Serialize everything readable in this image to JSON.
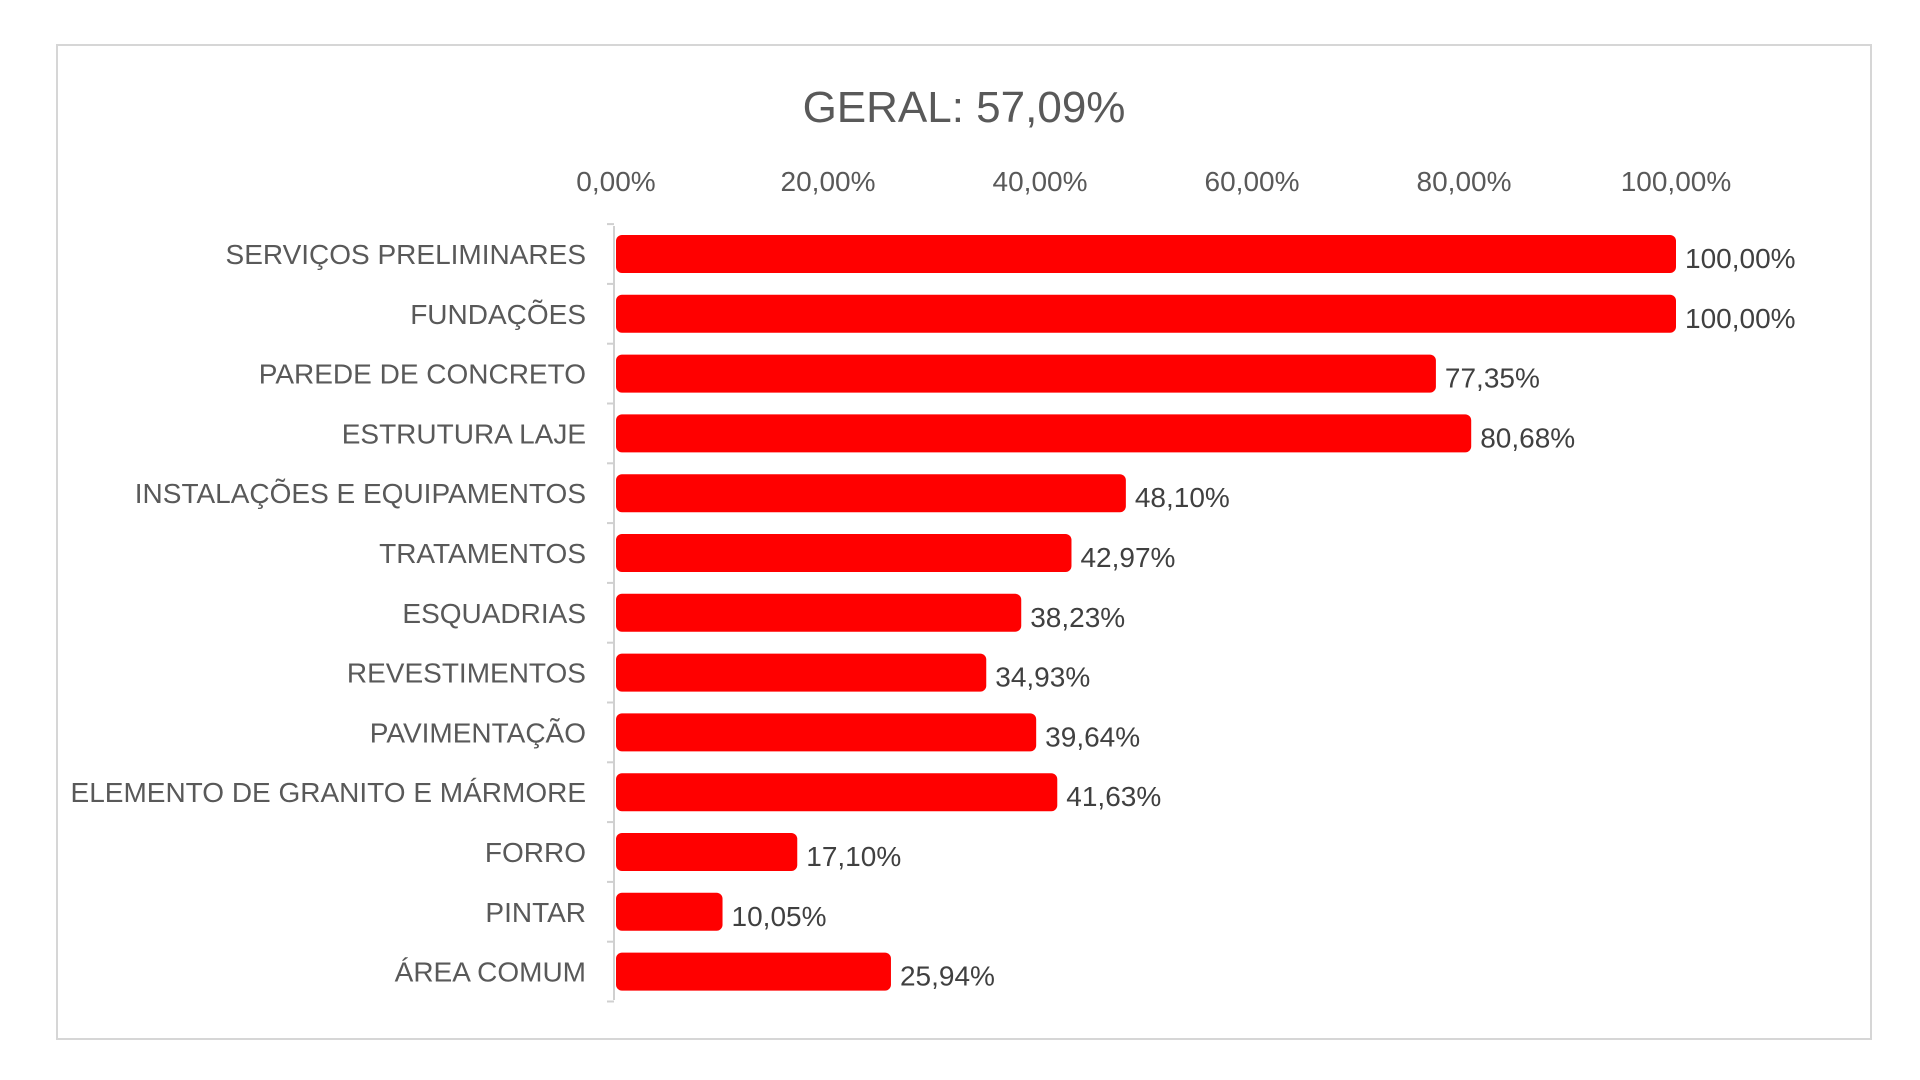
{
  "chart_data": {
    "type": "bar",
    "orientation": "horizontal",
    "title": "GERAL: 57,09%",
    "xlabel": "",
    "ylabel": "",
    "xlim": [
      0,
      100
    ],
    "x_ticks": [
      "0,00%",
      "20,00%",
      "40,00%",
      "60,00%",
      "80,00%",
      "100,00%"
    ],
    "x_axis_position": "top",
    "grid": false,
    "legend": "none",
    "bar_color": "#FF0000",
    "categories": [
      "SERVIÇOS PRELIMINARES",
      "FUNDAÇÕES",
      "PAREDE DE CONCRETO",
      "ESTRUTURA LAJE",
      "INSTALAÇÕES E EQUIPAMENTOS",
      "TRATAMENTOS",
      "ESQUADRIAS",
      "REVESTIMENTOS",
      "PAVIMENTAÇÃO",
      "ELEMENTO DE GRANITO E MÁRMORE",
      "FORRO",
      "PINTAR",
      "ÁREA COMUM"
    ],
    "values": [
      100.0,
      100.0,
      77.35,
      80.68,
      48.1,
      42.97,
      38.23,
      34.93,
      39.64,
      41.63,
      17.1,
      10.05,
      25.94
    ],
    "data_labels": [
      "100,00%",
      "100,00%",
      "77,35%",
      "80,68%",
      "48,10%",
      "42,97%",
      "38,23%",
      "34,93%",
      "39,64%",
      "41,63%",
      "17,10%",
      "10,05%",
      "25,94%"
    ]
  }
}
